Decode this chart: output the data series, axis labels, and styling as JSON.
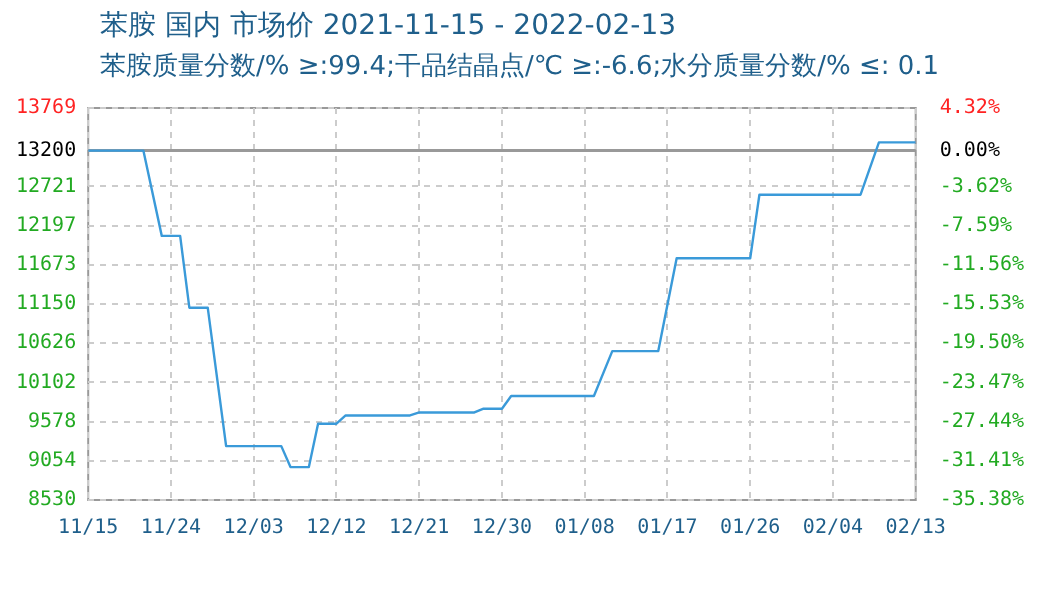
{
  "chart_data": {
    "type": "line",
    "title": "苯胺 国内 市场价 2021-11-15 - 2022-02-13",
    "subtitle": "苯胺质量分数/% ≥:99.4;干品结晶点/℃  ≥:-6.6;水分质量分数/%  ≤: 0.1",
    "x": [
      "2021-11-15",
      "2021-11-21",
      "2021-11-23",
      "2021-11-25",
      "2021-11-26",
      "2021-11-28",
      "2021-11-30",
      "2021-12-06",
      "2021-12-07",
      "2021-12-09",
      "2021-12-10",
      "2021-12-12",
      "2021-12-13",
      "2021-12-20",
      "2021-12-21",
      "2021-12-27",
      "2021-12-28",
      "2021-12-30",
      "2021-12-31",
      "2022-01-09",
      "2022-01-11",
      "2022-01-16",
      "2022-01-18",
      "2022-01-26",
      "2022-01-27",
      "2022-02-07",
      "2022-02-09",
      "2022-02-13"
    ],
    "series": [
      {
        "color": "#3a9ad9",
        "values": [
          13200,
          13200,
          12060,
          12060,
          11100,
          11100,
          9250,
          9250,
          8970,
          8970,
          9550,
          9550,
          9660,
          9660,
          9700,
          9700,
          9750,
          9750,
          9920,
          9920,
          10520,
          10520,
          11760,
          11760,
          12610,
          12610,
          13310,
          13310
        ]
      }
    ],
    "xlim": [
      "2021-11-15",
      "2022-02-13"
    ],
    "xticks": [
      {
        "value": "2021-11-15",
        "label": "11/15"
      },
      {
        "value": "2021-11-24",
        "label": "11/24"
      },
      {
        "value": "2021-12-03",
        "label": "12/03"
      },
      {
        "value": "2021-12-12",
        "label": "12/12"
      },
      {
        "value": "2021-12-21",
        "label": "12/21"
      },
      {
        "value": "2021-12-30",
        "label": "12/30"
      },
      {
        "value": "2022-01-08",
        "label": "01/08"
      },
      {
        "value": "2022-01-17",
        "label": "01/17"
      },
      {
        "value": "2022-01-26",
        "label": "01/26"
      },
      {
        "value": "2022-02-04",
        "label": "02/04"
      },
      {
        "value": "2022-02-13",
        "label": "02/13"
      }
    ],
    "ylim": [
      8530,
      13769
    ],
    "yticks": [
      8530,
      9054,
      9578,
      10102,
      10626,
      11150,
      11673,
      12197,
      12721,
      13200,
      13769
    ],
    "y2lim": [
      -35.38,
      4.32
    ],
    "y2ticks": [
      {
        "value": -35.38,
        "label": "-35.38%"
      },
      {
        "value": -31.41,
        "label": "-31.41%"
      },
      {
        "value": -27.44,
        "label": "-27.44%"
      },
      {
        "value": -23.47,
        "label": "-23.47%"
      },
      {
        "value": -19.5,
        "label": "-19.50%"
      },
      {
        "value": -15.53,
        "label": "-15.53%"
      },
      {
        "value": -11.56,
        "label": "-11.56%"
      },
      {
        "value": -7.59,
        "label": "-7.59%"
      },
      {
        "value": -3.62,
        "label": "-3.62%"
      },
      {
        "value": 0,
        "label": "0.00%"
      },
      {
        "value": 4.32,
        "label": "4.32%"
      }
    ],
    "ref_lines": [
      {
        "axis": "y",
        "value": 13200,
        "color": "#999999"
      }
    ],
    "grid": true,
    "legend": false,
    "marker": "none",
    "line_style": "solid"
  }
}
